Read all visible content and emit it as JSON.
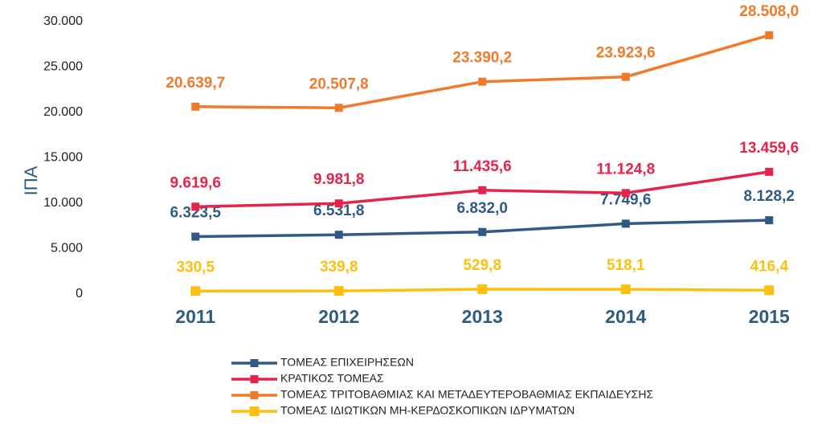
{
  "chart_data": {
    "type": "line",
    "y_label": "ΙΠΑ",
    "categories": [
      "2011",
      "2012",
      "2013",
      "2014",
      "2015"
    ],
    "series": [
      {
        "name": "ΤΟΜΕΑΣ ΕΠΙΧΕΙΡΗΣΕΩΝ",
        "color": "#2f5a85",
        "values": [
          6323.5,
          6531.8,
          6832.0,
          7749.6,
          8128.2
        ],
        "value_labels": [
          "6.323,5",
          "6.531,8",
          "6.832,0",
          "7.749,6",
          "8.128,2"
        ]
      },
      {
        "name": "ΚΡΑΤΙΚΟΣ ΤΟΜΕΑΣ",
        "color": "#e8234a",
        "values": [
          9619.6,
          9981.8,
          11435.6,
          11124.8,
          13459.6
        ],
        "value_labels": [
          "9.619,6",
          "9.981,8",
          "11.435,6",
          "11.124,8",
          "13.459,6"
        ]
      },
      {
        "name": "ΤΟΜΕΑΣ ΤΡΙΤΟΒΑΘΜΙΑΣ ΚΑΙ ΜΕΤΑΔΕΥΤΕΡΟΒΑΘΜΙΑΣ ΕΚΠΑΙΔΕΥΣΗΣ",
        "color": "#f07a2a",
        "values": [
          20639.7,
          20507.8,
          23390.2,
          23923.6,
          28508.0
        ],
        "value_labels": [
          "20.639,7",
          "20.507,8",
          "23.390,2",
          "23.923,6",
          "28.508,0"
        ]
      },
      {
        "name": "ΤΟΜΕΑΣ ΙΔΙΩΤΙΚΩΝ ΜΗ-ΚΕΡΔΟΣΚΟΠΙΚΩΝ ΙΔΡΥΜΑΤΩΝ",
        "color": "#fcc010",
        "values": [
          330.5,
          339.8,
          529.8,
          518.1,
          416.4
        ],
        "value_labels": [
          "330,5",
          "339,8",
          "529,8",
          "518,1",
          "416,4"
        ]
      }
    ],
    "ylim": [
      0,
      30000
    ],
    "yticks": [
      0,
      {
        "value": 5000,
        "label": "5.000"
      },
      {
        "value": 10000,
        "label": "10.000"
      },
      {
        "value": 15000,
        "label": "15.000"
      },
      {
        "value": 20000,
        "label": "20.000"
      },
      {
        "value": 25000,
        "label": "25.000"
      },
      {
        "value": 30000,
        "label": "30.000"
      }
    ],
    "grid": false,
    "legend": "bottom"
  }
}
